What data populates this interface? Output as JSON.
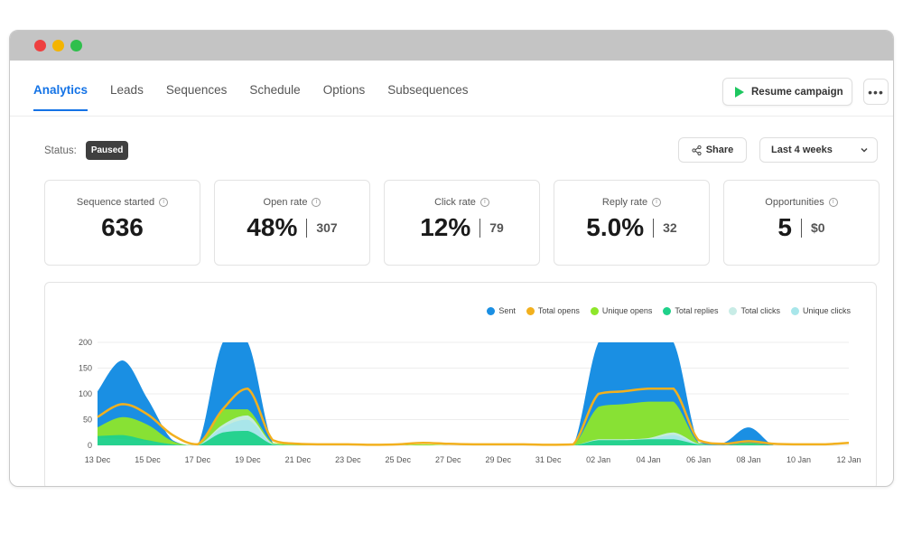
{
  "window": {
    "controls": [
      "close",
      "minimize",
      "maximize"
    ]
  },
  "tabs": [
    {
      "label": "Analytics",
      "active": true
    },
    {
      "label": "Leads",
      "active": false
    },
    {
      "label": "Sequences",
      "active": false
    },
    {
      "label": "Schedule",
      "active": false
    },
    {
      "label": "Options",
      "active": false
    },
    {
      "label": "Subsequences",
      "active": false
    }
  ],
  "header": {
    "resume_label": "Resume campaign",
    "more_label": "•••"
  },
  "status": {
    "label": "Status:",
    "value": "Paused"
  },
  "toolbar": {
    "share_label": "Share",
    "range_label": "Last 4 weeks"
  },
  "metrics": [
    {
      "label": "Sequence started",
      "value": "636",
      "sub": ""
    },
    {
      "label": "Open rate",
      "value": "48%",
      "sub": "307"
    },
    {
      "label": "Click rate",
      "value": "12%",
      "sub": "79"
    },
    {
      "label": "Reply rate",
      "value": "5.0%",
      "sub": "32"
    },
    {
      "label": "Opportunities",
      "value": "5",
      "sub": "$0"
    }
  ],
  "colors": {
    "accent": "#1473e6",
    "play": "#1ec760",
    "badge": "#3f3f3f"
  },
  "chart_data": {
    "type": "area",
    "x": [
      "13 Dec",
      "14 Dec",
      "15 Dec",
      "16 Dec",
      "17 Dec",
      "18 Dec",
      "19 Dec",
      "20 Dec",
      "21 Dec",
      "22 Dec",
      "23 Dec",
      "24 Dec",
      "25 Dec",
      "26 Dec",
      "27 Dec",
      "28 Dec",
      "29 Dec",
      "30 Dec",
      "31 Dec",
      "01 Jan",
      "02 Jan",
      "03 Jan",
      "04 Jan",
      "05 Jan",
      "06 Jan",
      "07 Jan",
      "08 Jan",
      "09 Jan",
      "10 Jan",
      "11 Jan",
      "12 Jan"
    ],
    "xticks": [
      "13 Dec",
      "15 Dec",
      "17 Dec",
      "19 Dec",
      "21 Dec",
      "23 Dec",
      "25 Dec",
      "27 Dec",
      "29 Dec",
      "31 Dec",
      "02 Jan",
      "04 Jan",
      "06 Jan",
      "08 Jan",
      "10 Jan",
      "12 Jan"
    ],
    "yticks": [
      0,
      50,
      100,
      150,
      200
    ],
    "ylim": [
      0,
      200
    ],
    "series": [
      {
        "name": "Sent",
        "color": "#1a8fe3",
        "values": [
          105,
          165,
          90,
          10,
          0,
          200,
          200,
          5,
          0,
          0,
          0,
          0,
          0,
          0,
          0,
          0,
          0,
          0,
          0,
          0,
          200,
          200,
          200,
          200,
          5,
          5,
          35,
          0,
          0,
          0,
          0
        ]
      },
      {
        "name": "Total opens",
        "color": "#f2b01e",
        "values": [
          55,
          80,
          60,
          20,
          2,
          70,
          110,
          10,
          3,
          2,
          2,
          1,
          2,
          5,
          3,
          2,
          2,
          2,
          1,
          2,
          100,
          105,
          110,
          110,
          10,
          3,
          8,
          3,
          2,
          2,
          5
        ]
      },
      {
        "name": "Unique opens",
        "color": "#8ee62a",
        "values": [
          35,
          55,
          40,
          8,
          0,
          70,
          70,
          5,
          2,
          0,
          0,
          0,
          0,
          2,
          0,
          0,
          0,
          0,
          0,
          0,
          75,
          80,
          85,
          85,
          5,
          0,
          5,
          0,
          0,
          0,
          0
        ]
      },
      {
        "name": "Total replies",
        "color": "#1fd18a",
        "values": [
          18,
          20,
          10,
          2,
          0,
          25,
          28,
          2,
          0,
          0,
          0,
          0,
          0,
          0,
          0,
          0,
          0,
          0,
          0,
          0,
          10,
          10,
          12,
          12,
          2,
          0,
          3,
          0,
          0,
          0,
          0
        ]
      },
      {
        "name": "Total clicks",
        "color": "#c8ece6",
        "values": [
          15,
          12,
          8,
          2,
          0,
          40,
          58,
          3,
          0,
          0,
          0,
          0,
          0,
          0,
          0,
          0,
          0,
          0,
          0,
          0,
          12,
          12,
          14,
          25,
          3,
          0,
          2,
          0,
          0,
          0,
          0
        ]
      },
      {
        "name": "Unique clicks",
        "color": "#a8e6ea",
        "values": [
          12,
          10,
          6,
          1,
          0,
          35,
          50,
          2,
          0,
          0,
          0,
          0,
          0,
          0,
          0,
          0,
          0,
          0,
          0,
          0,
          10,
          10,
          12,
          20,
          2,
          0,
          2,
          0,
          0,
          0,
          0
        ]
      }
    ],
    "legend": "top-right",
    "grid": true
  }
}
